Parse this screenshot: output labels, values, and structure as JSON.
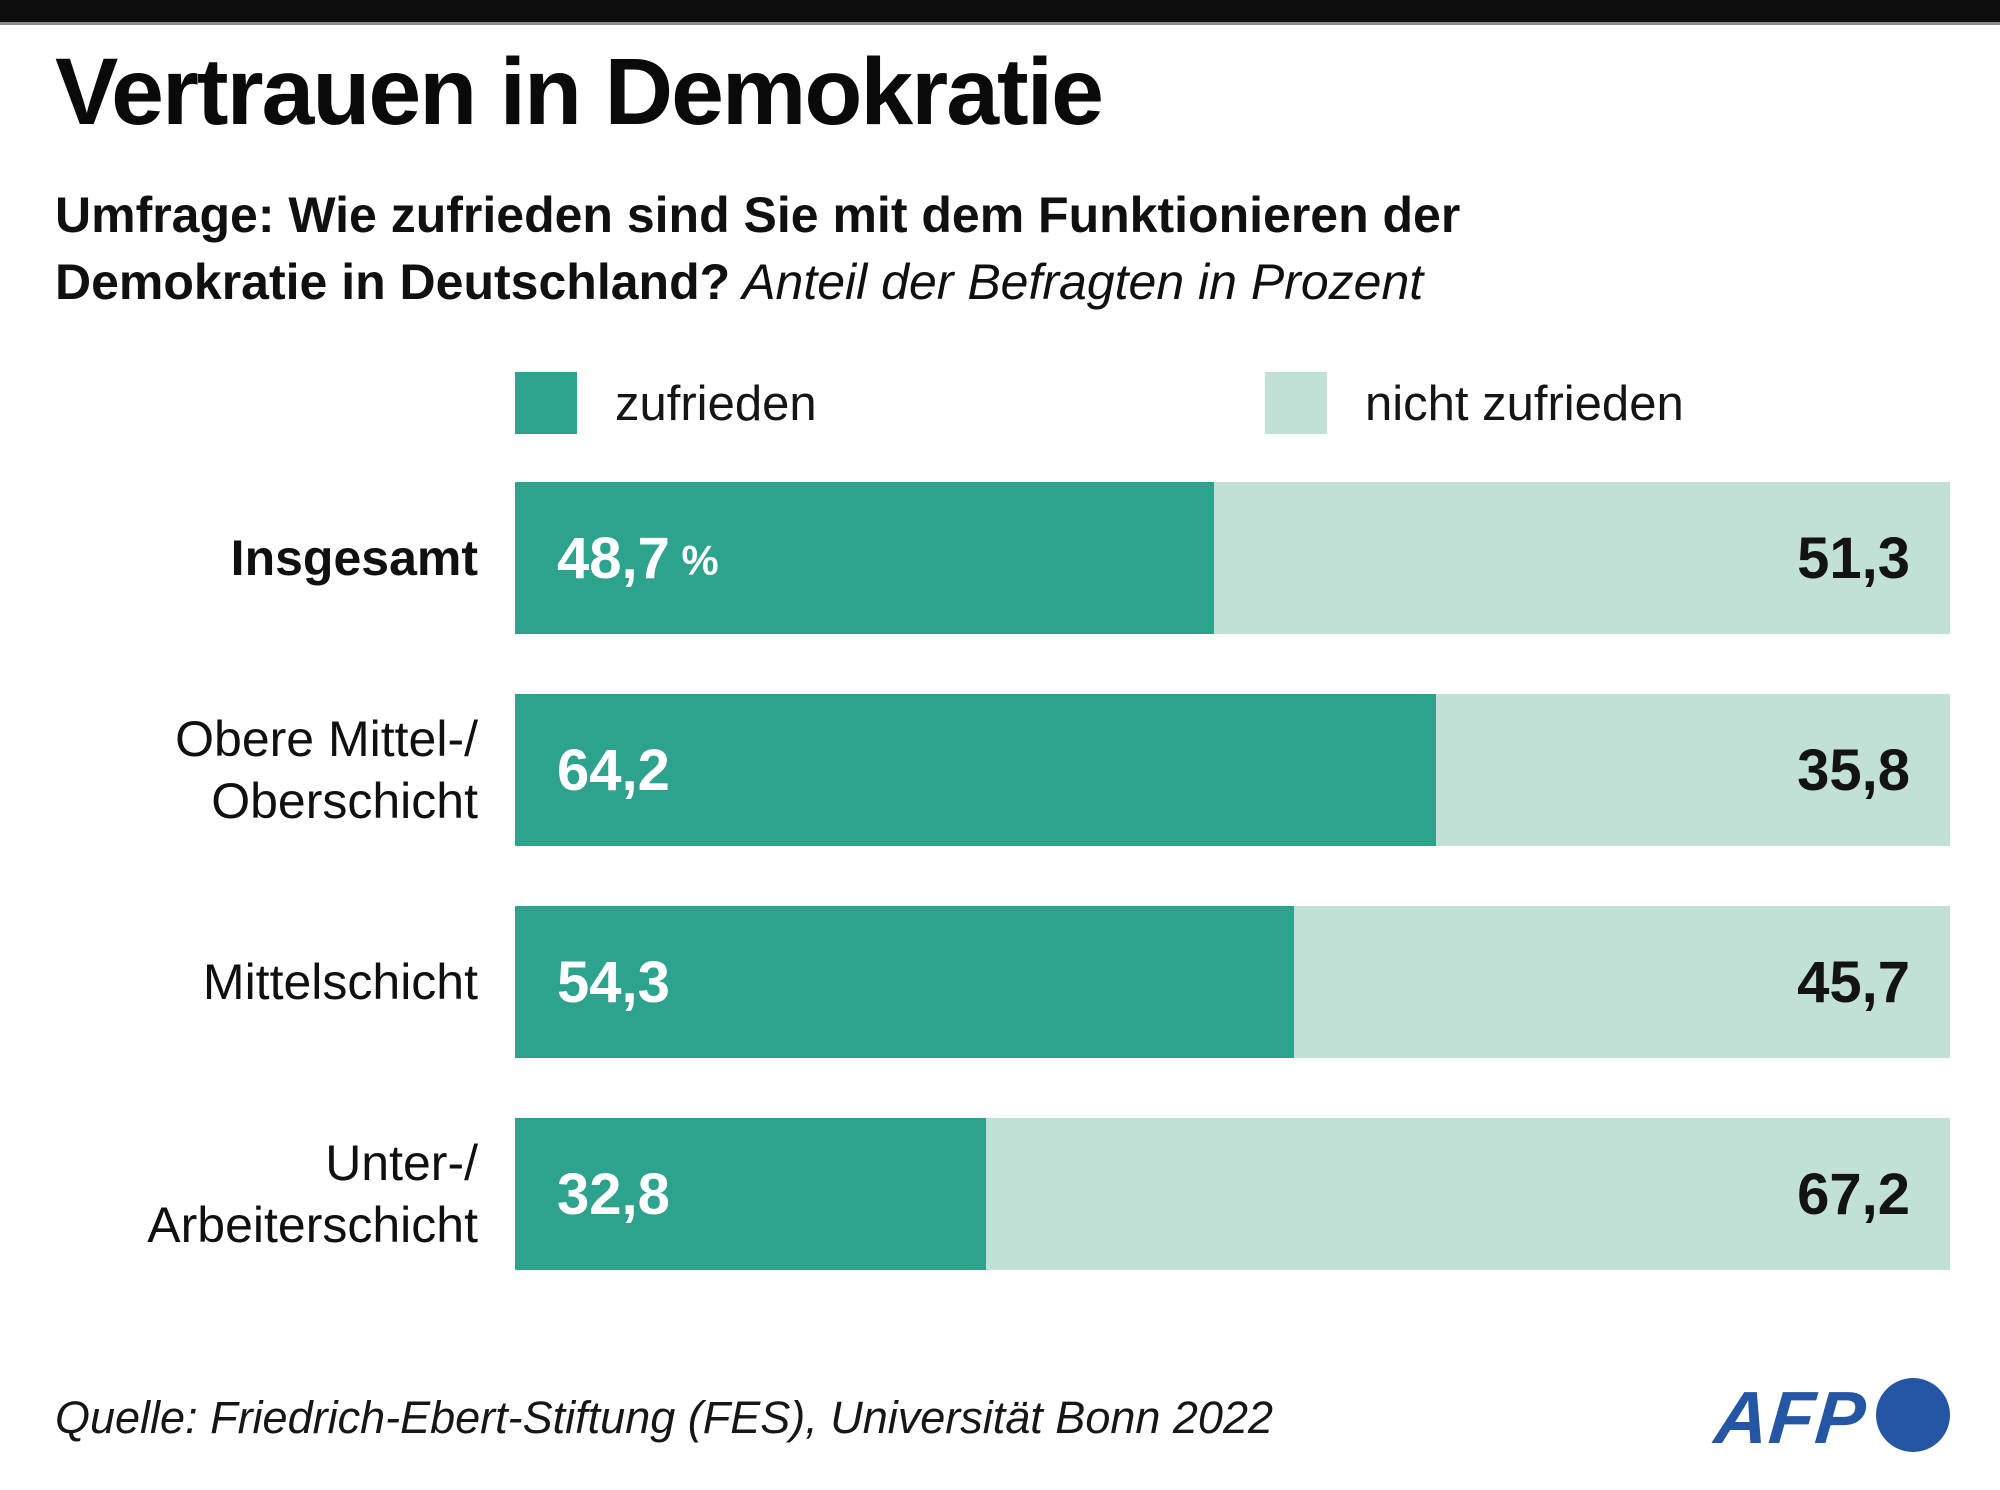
{
  "header": {
    "title": "Vertrauen in Demokratie",
    "subtitle_line1": "Umfrage: Wie zufrieden sind Sie mit dem Funktionieren der",
    "subtitle_line2_bold": "Demokratie in Deutschland?",
    "subtitle_note": " Anteil der Befragten in Prozent"
  },
  "legend": {
    "items": [
      {
        "label": "zufrieden",
        "color": "#2da28c"
      },
      {
        "label": "nicht zufrieden",
        "color": "#c1e0d6"
      }
    ]
  },
  "chart_data": {
    "type": "bar",
    "orientation": "horizontal",
    "stacked": true,
    "title": "Vertrauen in Demokratie",
    "question": "Wie zufrieden sind Sie mit dem Funktionieren der Demokratie in Deutschland?",
    "unit": "Anteil der Befragten in Prozent",
    "categories": [
      "Insgesamt",
      "Obere Mittel-/Oberschicht",
      "Mittelschicht",
      "Unter-/Arbeiterschicht"
    ],
    "series": [
      {
        "name": "zufrieden",
        "color": "#2da28c",
        "values": [
          48.7,
          64.2,
          54.3,
          32.8
        ]
      },
      {
        "name": "nicht zufrieden",
        "color": "#c1e0d6",
        "values": [
          51.3,
          35.8,
          45.7,
          67.2
        ]
      }
    ],
    "xlim": [
      0,
      100
    ],
    "legend_position": "top",
    "value_labels": true
  },
  "rows": [
    {
      "label_line1": "Insgesamt",
      "label_line2": "",
      "satisfied_pct": 48.7,
      "left_value": "48,7",
      "left_suffix": " %",
      "right_value": "51,3"
    },
    {
      "label_line1": "Obere Mittel-/",
      "label_line2": "Oberschicht",
      "satisfied_pct": 64.2,
      "left_value": "64,2",
      "left_suffix": "",
      "right_value": "35,8"
    },
    {
      "label_line1": "Mittelschicht",
      "label_line2": "",
      "satisfied_pct": 54.3,
      "left_value": "54,3",
      "left_suffix": "",
      "right_value": "45,7"
    },
    {
      "label_line1": "Unter-/",
      "label_line2": "Arbeiterschicht",
      "satisfied_pct": 32.8,
      "left_value": "32,8",
      "left_suffix": "",
      "right_value": "67,2"
    }
  ],
  "footer": {
    "source": "Quelle: Friedrich-Ebert-Stiftung (FES), Universität Bonn 2022",
    "logo_text": "AFP",
    "logo_color": "#2556a4"
  }
}
